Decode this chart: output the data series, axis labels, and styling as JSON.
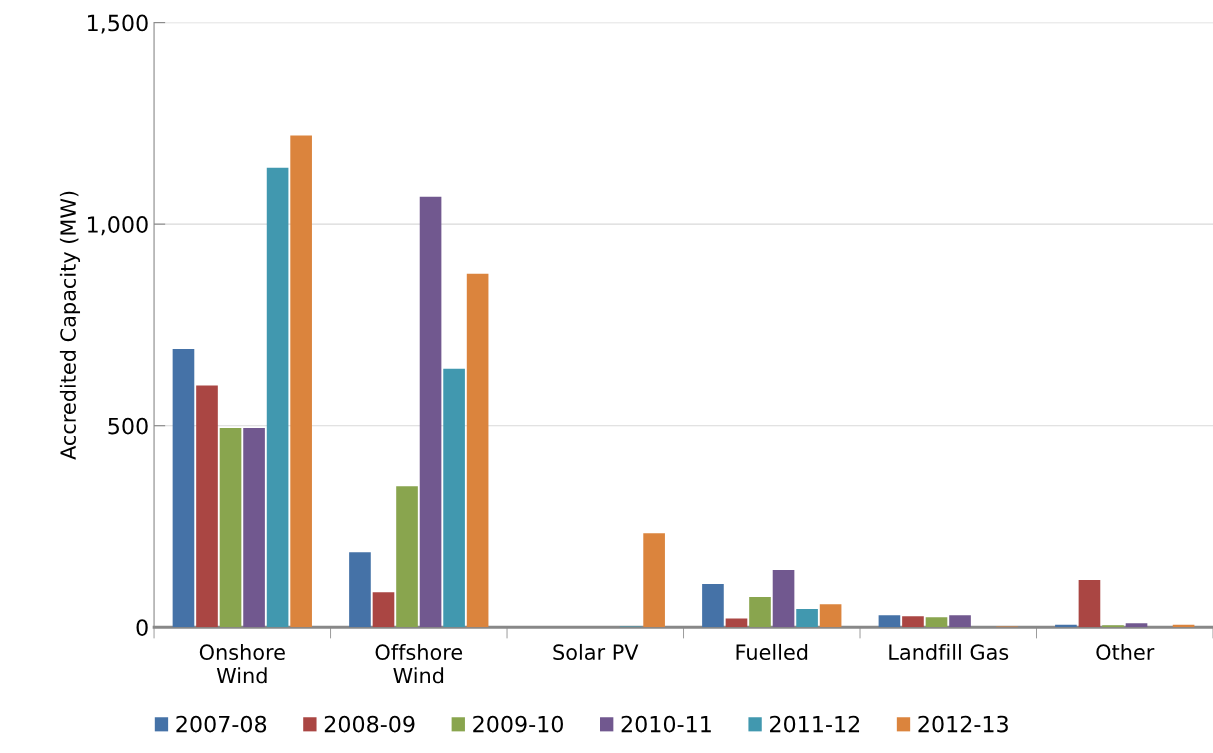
{
  "chart_data": {
    "type": "bar",
    "ylabel": "Accredited Capacity (MW)",
    "categories": [
      "Onshore\nWind",
      "Offshore\nWind",
      "Solar PV",
      "Fuelled",
      "Landfill Gas",
      "Other"
    ],
    "series": [
      {
        "name": "2007-08",
        "color": "#4572a7",
        "values": [
          690,
          186,
          null,
          107,
          30,
          6
        ]
      },
      {
        "name": "2008-09",
        "color": "#aa4643",
        "values": [
          600,
          87,
          null,
          22,
          27,
          117
        ]
      },
      {
        "name": "2009-10",
        "color": "#89a54e",
        "values": [
          494,
          350,
          null,
          75,
          25,
          5
        ]
      },
      {
        "name": "2010-11",
        "color": "#71588f",
        "values": [
          494,
          1068,
          null,
          142,
          30,
          10
        ]
      },
      {
        "name": "2011-12",
        "color": "#4198af",
        "values": [
          1140,
          641,
          2,
          45,
          null,
          null
        ]
      },
      {
        "name": "2012-13",
        "color": "#db843d",
        "values": [
          1220,
          877,
          233,
          57,
          2,
          6
        ]
      }
    ],
    "ylim": [
      0,
      1500
    ],
    "yticks": [
      {
        "value": 0,
        "label": "0"
      },
      {
        "value": 500,
        "label": "500"
      },
      {
        "value": 1000,
        "label": "1,000"
      },
      {
        "value": 1500,
        "label": "1,500"
      }
    ],
    "grid": "y",
    "legend": "bottom"
  }
}
